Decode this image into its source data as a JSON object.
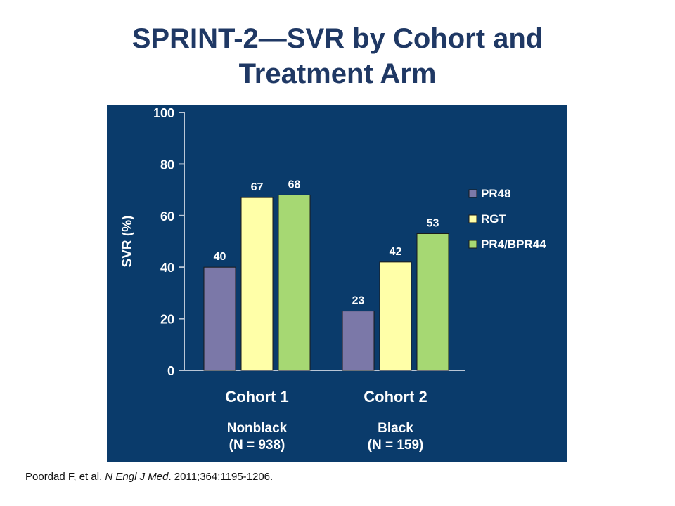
{
  "slide": {
    "title_line1": "SPRINT-2—SVR by Cohort and",
    "title_line2": "Treatment Arm"
  },
  "citation": {
    "authors": "Poordad F, et al. ",
    "journal": "N Engl J Med",
    "rest": ". 2011;364:1195-1206."
  },
  "colors": {
    "title": "#1f3864",
    "panel_background": "#0a3b6b",
    "axis": "#b9c6d6",
    "text": "#ffffff",
    "series": [
      "#7b78a8",
      "#ffffa8",
      "#a6d873"
    ]
  },
  "chart_data": {
    "type": "bar",
    "title": "",
    "xlabel": "",
    "ylabel": "SVR (%)",
    "ylim": [
      0,
      100
    ],
    "yticks": [
      0,
      20,
      40,
      60,
      80,
      100
    ],
    "grid": false,
    "legend_position": "right",
    "categories": [
      "Cohort 1",
      "Cohort 2"
    ],
    "category_sublabels": [
      [
        "Nonblack",
        "(N = 938)"
      ],
      [
        "Black",
        "(N = 159)"
      ]
    ],
    "series": [
      {
        "name": "PR48",
        "values": [
          40,
          23
        ]
      },
      {
        "name": "RGT",
        "values": [
          67,
          42
        ]
      },
      {
        "name": "PR4/BPR44",
        "values": [
          68,
          53
        ]
      }
    ]
  }
}
